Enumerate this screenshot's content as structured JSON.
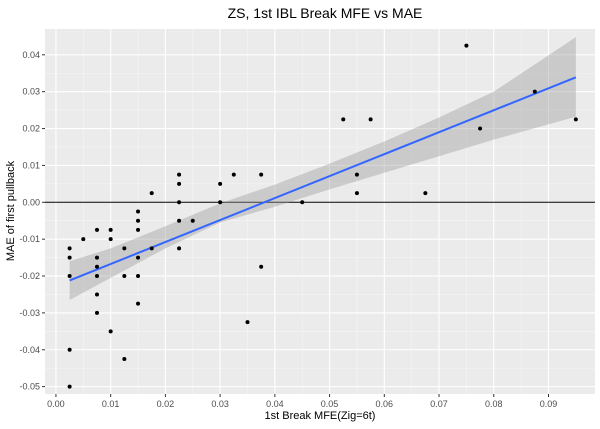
{
  "chart_data": {
    "type": "scatter",
    "title": "ZS, 1st IBL Break MFE vs MAE",
    "xlabel": "1st Break MFE(Zig=6t)",
    "ylabel": "MAE of first pullback",
    "xlim": [
      -0.002,
      0.0985
    ],
    "ylim": [
      -0.052,
      0.047
    ],
    "x_ticks": [
      0.0,
      0.01,
      0.02,
      0.03,
      0.04,
      0.05,
      0.06,
      0.07,
      0.08,
      0.09
    ],
    "x_tick_labels": [
      "0.00",
      "0.01",
      "0.02",
      "0.03",
      "0.04",
      "0.05",
      "0.06",
      "0.07",
      "0.08",
      "0.09"
    ],
    "y_ticks": [
      -0.05,
      -0.04,
      -0.03,
      -0.02,
      -0.01,
      0.0,
      0.01,
      0.02,
      0.03,
      0.04
    ],
    "y_tick_labels": [
      "-0.05",
      "-0.04",
      "-0.03",
      "-0.02",
      "-0.01",
      "0.00",
      "0.01",
      "0.02",
      "0.03",
      "0.04"
    ],
    "grid": true,
    "hline_y": 0,
    "points": [
      [
        0.0025,
        -0.0125
      ],
      [
        0.0025,
        -0.015
      ],
      [
        0.0025,
        -0.02
      ],
      [
        0.0025,
        -0.04
      ],
      [
        0.0025,
        -0.05
      ],
      [
        0.005,
        -0.01
      ],
      [
        0.0075,
        -0.0075
      ],
      [
        0.0075,
        -0.015
      ],
      [
        0.0075,
        -0.0175
      ],
      [
        0.0075,
        -0.02
      ],
      [
        0.0075,
        -0.025
      ],
      [
        0.0075,
        -0.03
      ],
      [
        0.01,
        -0.0075
      ],
      [
        0.01,
        -0.01
      ],
      [
        0.01,
        -0.035
      ],
      [
        0.0125,
        -0.0125
      ],
      [
        0.0125,
        -0.02
      ],
      [
        0.0125,
        -0.0425
      ],
      [
        0.015,
        -0.0025
      ],
      [
        0.015,
        -0.005
      ],
      [
        0.015,
        -0.0075
      ],
      [
        0.015,
        -0.015
      ],
      [
        0.015,
        -0.02
      ],
      [
        0.015,
        -0.0275
      ],
      [
        0.0175,
        0.0025
      ],
      [
        0.0175,
        -0.0125
      ],
      [
        0.0225,
        0.0075
      ],
      [
        0.0225,
        0.005
      ],
      [
        0.0225,
        0.0
      ],
      [
        0.0225,
        -0.005
      ],
      [
        0.0225,
        -0.0125
      ],
      [
        0.025,
        -0.005
      ],
      [
        0.03,
        0.005
      ],
      [
        0.03,
        0.0
      ],
      [
        0.0325,
        0.0075
      ],
      [
        0.035,
        -0.0325
      ],
      [
        0.0375,
        0.0075
      ],
      [
        0.0375,
        -0.0175
      ],
      [
        0.045,
        0.0
      ],
      [
        0.0525,
        0.0225
      ],
      [
        0.055,
        0.0075
      ],
      [
        0.055,
        0.0025
      ],
      [
        0.0575,
        0.0225
      ],
      [
        0.0675,
        0.0025
      ],
      [
        0.075,
        0.0425
      ],
      [
        0.0775,
        0.02
      ],
      [
        0.0875,
        0.03
      ],
      [
        0.095,
        0.0225
      ]
    ],
    "trend_line": {
      "x": [
        0.0025,
        0.095
      ],
      "y": [
        -0.0212,
        0.0339
      ]
    },
    "confidence_band": {
      "x": [
        0.0025,
        0.01,
        0.02,
        0.03,
        0.04,
        0.05,
        0.06,
        0.07,
        0.08,
        0.095
      ],
      "lower": [
        -0.0265,
        -0.0205,
        -0.0125,
        -0.0055,
        -0.0012,
        0.0035,
        0.008,
        0.0125,
        0.017,
        0.0232
      ],
      "upper": [
        -0.016,
        -0.0125,
        -0.0065,
        -0.0003,
        0.0048,
        0.0105,
        0.0165,
        0.023,
        0.03,
        0.0448
      ]
    },
    "colors": {
      "panel": "#ebebeb",
      "points": "#000000",
      "trend": "#3366ff",
      "ribbon": "#999999"
    }
  }
}
